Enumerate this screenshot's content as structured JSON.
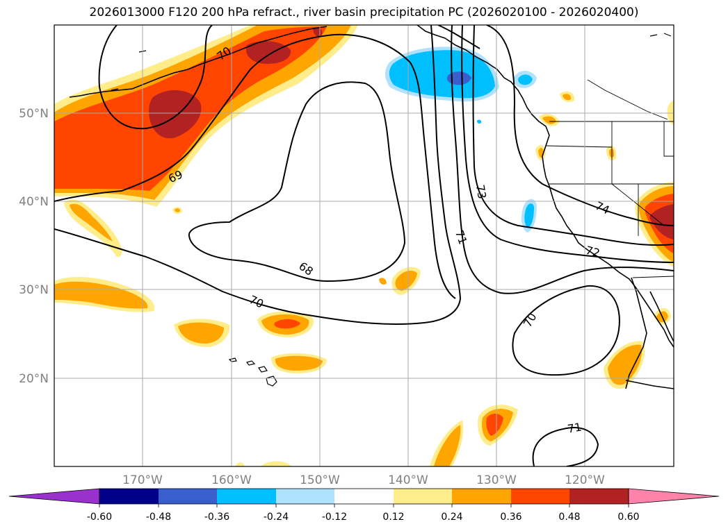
{
  "title": "2026013000 F120 200 hPa refract., river basin precipitation PC (2026020100 - 2026020400)",
  "lat_labels": [
    "50°N",
    "40°N",
    "30°N",
    "20°N"
  ],
  "lon_labels": [
    "170°W",
    "160°W",
    "150°W",
    "140°W",
    "130°W",
    "120°W"
  ],
  "contour_labels": [
    "70",
    "69",
    "68",
    "70",
    "73",
    "71",
    "74",
    "72",
    "70",
    "71"
  ],
  "colorbar": {
    "ticks": [
      "-0.60",
      "-0.48",
      "-0.36",
      "-0.24",
      "-0.12",
      "0.12",
      "0.24",
      "0.36",
      "0.48",
      "0.60"
    ],
    "colors": [
      "#9932cc",
      "#00008b",
      "#3a5fcd",
      "#00bfff",
      "#b0e2ff",
      "#ffffff",
      "#ffec8b",
      "#ffa500",
      "#ff4500",
      "#b22222",
      "#ff82ab"
    ]
  },
  "fill_colors": {
    "light_yellow": "#ffec8b",
    "orange": "#ffa500",
    "red_orange": "#ff4500",
    "dark_red": "#b22222",
    "sky_blue": "#00bfff",
    "mid_blue": "#3a5fcd",
    "light_blue": "#b0e2ff"
  }
}
